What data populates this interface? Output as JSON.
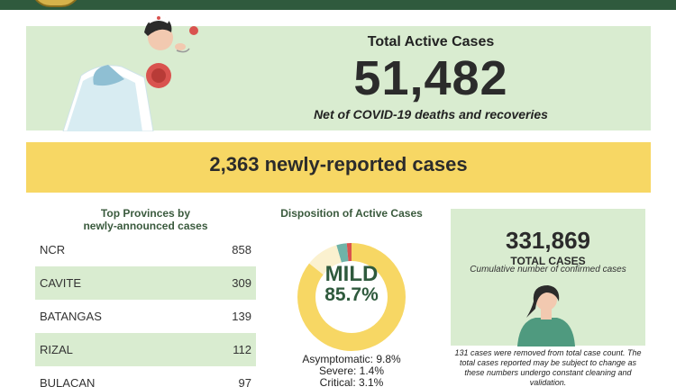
{
  "colors": {
    "top_bar": "#2f5a3d",
    "light_green": "#d9ecd0",
    "yellow": "#f7d764",
    "dark_green": "#2f5a3d"
  },
  "hero": {
    "title": "Total Active Cases",
    "number": "51,482",
    "subtitle": "Net of COVID-19 deaths and recoveries",
    "illustration": "coughing-woman-icon"
  },
  "banner": {
    "text": "2,363 newly-reported cases"
  },
  "provinces": {
    "title_line1": "Top Provinces by",
    "title_line2": "newly-announced cases",
    "rows": [
      {
        "name": "NCR",
        "value": "858"
      },
      {
        "name": "CAVITE",
        "value": "309"
      },
      {
        "name": "BATANGAS",
        "value": "139"
      },
      {
        "name": "RIZAL",
        "value": "112"
      },
      {
        "name": "BULACAN",
        "value": "97"
      }
    ]
  },
  "disposition": {
    "title": "Disposition of Active Cases",
    "main_label": "MILD",
    "main_value": "85.7%",
    "items": [
      "Asymptomatic: 9.8%",
      "Severe: 1.4%",
      "Critical: 3.1%"
    ]
  },
  "chart_data": {
    "type": "pie",
    "title": "Disposition of Active Cases",
    "categories": [
      "Mild",
      "Asymptomatic",
      "Severe",
      "Critical"
    ],
    "values": [
      85.7,
      9.8,
      1.4,
      3.1
    ],
    "colors": [
      "#f7d764",
      "#fbf1cf",
      "#d9534f",
      "#6fb3a8"
    ]
  },
  "total": {
    "number": "331,869",
    "label": "TOTAL CASES",
    "subtitle": "Cumulative number of confirmed cases",
    "note": "131 cases were removed from total case count. The total cases reported may be subject to change as these numbers undergo constant cleaning and validation.",
    "illustration": "woman-portrait-icon"
  }
}
